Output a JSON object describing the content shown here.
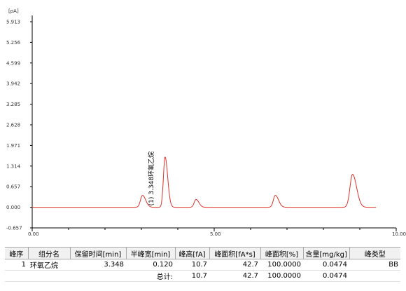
{
  "chart_data": {
    "type": "line",
    "title": "",
    "xlabel": "",
    "ylabel": "",
    "y_unit_label": "[pA]",
    "xlim": [
      0,
      10
    ],
    "ylim": [
      -0.657,
      5.913
    ],
    "x_ticks": [
      0,
      5,
      10
    ],
    "x_tick_labels": [
      "0.00",
      "5.00",
      "10.00"
    ],
    "x_minor_step": 1,
    "y_ticks": [
      -0.657,
      0.0,
      0.657,
      1.314,
      1.971,
      2.628,
      3.285,
      3.942,
      4.599,
      5.256,
      5.913
    ],
    "y_tick_labels": [
      "-0.657",
      "0.000",
      "0.657",
      "1.314",
      "1.971",
      "2.628",
      "3.285",
      "3.942",
      "4.599",
      "5.256",
      "5.913"
    ],
    "grid": false,
    "series": [
      {
        "line_color": "#e0302a",
        "x_range": [
          0.0,
          9.45
        ],
        "baseline": 0.0
      }
    ],
    "peaks": [
      {
        "rt": 3.03,
        "height": 0.38,
        "width": 0.055
      },
      {
        "rt": 3.65,
        "height": 1.6,
        "width": 0.045
      },
      {
        "rt": 4.5,
        "height": 0.25,
        "width": 0.05
      },
      {
        "rt": 6.68,
        "height": 0.38,
        "width": 0.055
      },
      {
        "rt": 8.8,
        "height": 1.05,
        "width": 0.07
      }
    ],
    "annotations": [
      {
        "text": "(1) 3.348环氧乙烷",
        "x": 3.48
      }
    ]
  },
  "table": {
    "headers": [
      "峰序",
      "组分名",
      "保留时间[min]",
      "半峰宽[min]",
      "峰高[fA]",
      "峰面积[fA*s]",
      "峰面积[%]",
      "含量[mg/kg]",
      "峰类型"
    ],
    "rows": [
      [
        "1",
        "环氧乙烷",
        "3.348",
        "0.120",
        "10.7",
        "42.7",
        "100.0000",
        "0.0474",
        "BB"
      ]
    ],
    "total_row": [
      "",
      "",
      "",
      "总计:",
      "10.7",
      "42.7",
      "100.0000",
      "0.0474",
      ""
    ]
  }
}
